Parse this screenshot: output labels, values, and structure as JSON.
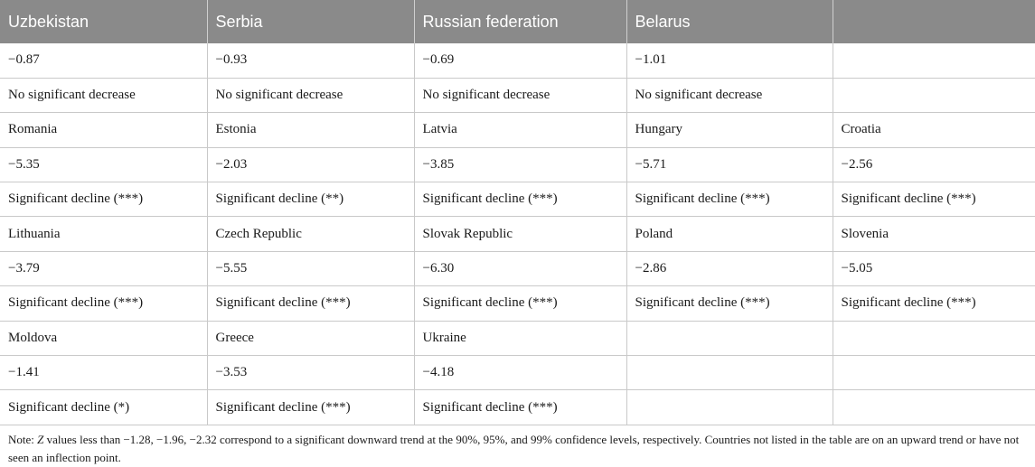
{
  "table": {
    "headers": [
      "Uzbekistan",
      "Serbia",
      "Russian federation",
      "Belarus",
      ""
    ],
    "rows": [
      [
        "−0.87",
        "−0.93",
        "−0.69",
        "−1.01",
        ""
      ],
      [
        "No significant decrease",
        "No significant decrease",
        "No significant decrease",
        "No significant decrease",
        ""
      ],
      [
        "Romania",
        "Estonia",
        "Latvia",
        "Hungary",
        "Croatia"
      ],
      [
        "−5.35",
        "−2.03",
        "−3.85",
        "−5.71",
        "−2.56"
      ],
      [
        "Significant decline (***)",
        "Significant decline (**)",
        "Significant decline (***)",
        "Significant decline (***)",
        "Significant decline (***)"
      ],
      [
        "Lithuania",
        "Czech Republic",
        "Slovak Republic",
        "Poland",
        "Slovenia"
      ],
      [
        "−3.79",
        "−5.55",
        "−6.30",
        "−2.86",
        "−5.05"
      ],
      [
        "Significant decline (***)",
        "Significant decline (***)",
        "Significant decline (***)",
        "Significant decline (***)",
        "Significant decline (***)"
      ],
      [
        "Moldova",
        "Greece",
        "Ukraine",
        "",
        ""
      ],
      [
        "−1.41",
        "−3.53",
        "−4.18",
        "",
        ""
      ],
      [
        "Significant decline (*)",
        "Significant decline (***)",
        "Significant decline (***)",
        "",
        ""
      ]
    ]
  },
  "note": {
    "prefix": "Note: ",
    "z_symbol": "Z",
    "text": " values less than −1.28, −1.96, −2.32 correspond to a significant downward trend at the 90%, 95%, and 99% confidence levels, respectively. Countries not listed in the table are on an upward trend or have not seen an inflection point."
  }
}
